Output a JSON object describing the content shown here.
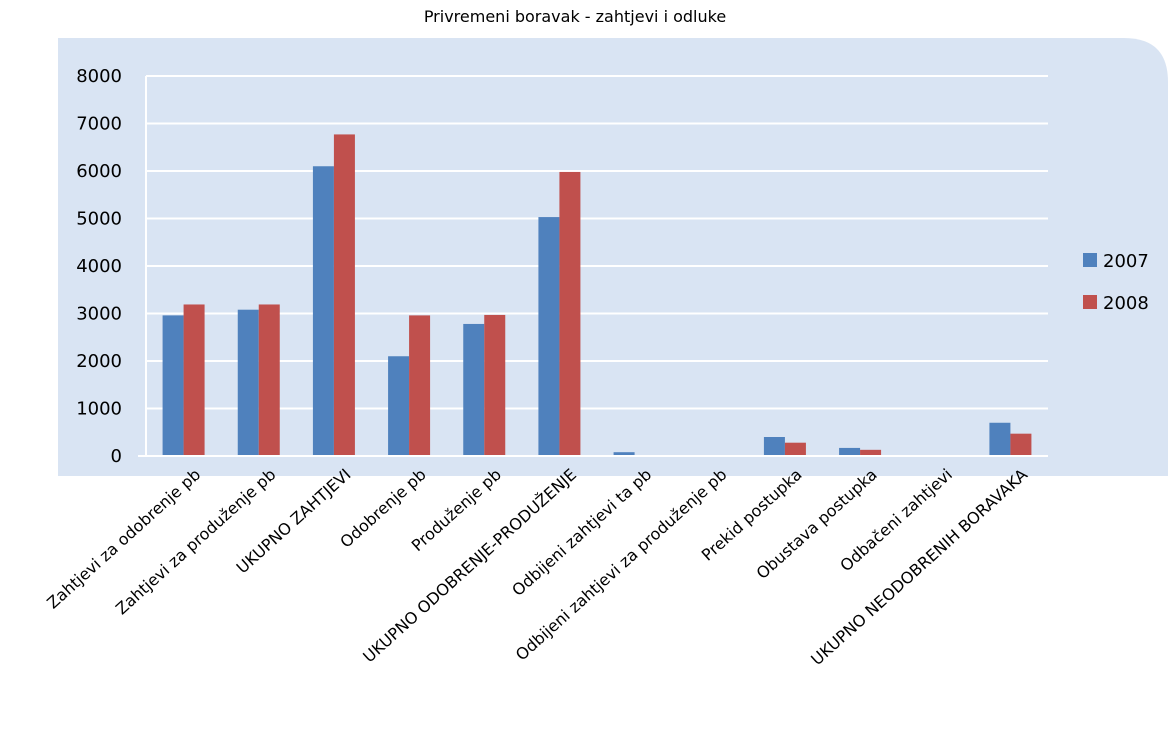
{
  "chart_data": {
    "type": "bar",
    "title": "Privremeni boravak - zahtjevi i odluke",
    "xlabel": "",
    "ylabel": "",
    "ylim": [
      0,
      8000
    ],
    "yticks": [
      0,
      1000,
      2000,
      3000,
      4000,
      5000,
      6000,
      7000,
      8000
    ],
    "grid": true,
    "legend_position": "right",
    "categories": [
      "Zahtjevi za odobrenje pb",
      "Zahtjevi za produženje pb",
      "UKUPNO ZAHTJEVI",
      "Odobrenje pb",
      "Produženje pb",
      "UKUPNO ODOBRENJE-PRODUŽENJE",
      "Odbijeni zahtjevi ta pb",
      "Odbijeni zahtjevi za produženje pb",
      "Prekid postupka",
      "Obustava postupka",
      "Odbačeni zahtjevi",
      "UKUPNO NEODOBRENIH  BORAVAKA"
    ],
    "series": [
      {
        "name": "2007",
        "color": "#4f81bd",
        "values": [
          2960,
          3080,
          6100,
          2100,
          2780,
          5030,
          80,
          0,
          400,
          170,
          0,
          700
        ]
      },
      {
        "name": "2008",
        "color": "#c0504d",
        "values": [
          3190,
          3190,
          6770,
          2960,
          2970,
          5980,
          0,
          0,
          280,
          130,
          0,
          470
        ]
      }
    ],
    "background_color": "#d9e4f3"
  }
}
